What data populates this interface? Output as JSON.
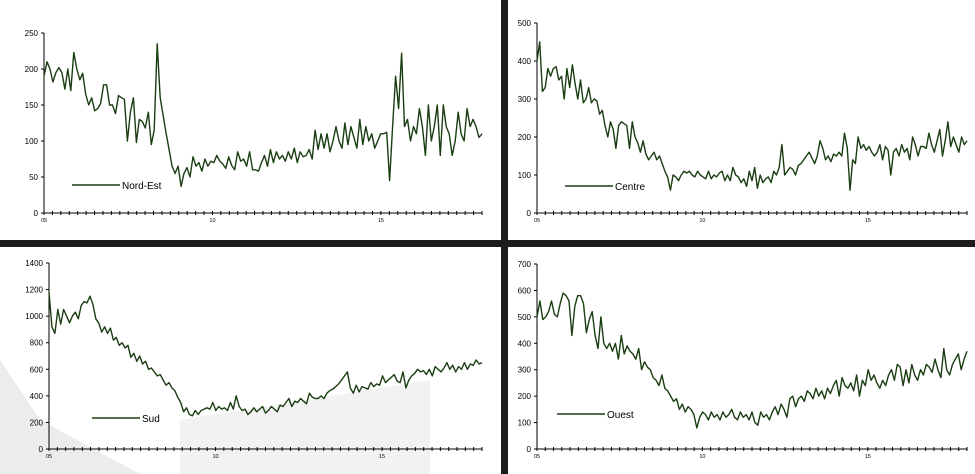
{
  "colors": {
    "series": "#1a3d12",
    "axis": "#000000",
    "divider": "#1c1c1c",
    "watermark": "#ececec"
  },
  "chart_data": [
    {
      "type": "line",
      "legend": {
        "label": "Nord-Est",
        "placement": "bottom-left"
      },
      "ylim": [
        0,
        250
      ],
      "yticks": [
        "0",
        "50",
        "100",
        "150",
        "200",
        "250"
      ],
      "xticks": [
        "05",
        "10",
        "15"
      ],
      "series": [
        {
          "name": "Nord-Est",
          "x_range": [
            2005,
            2018
          ],
          "values": [
            190,
            210,
            200,
            182,
            195,
            202,
            195,
            172,
            200,
            170,
            223,
            200,
            185,
            194,
            165,
            150,
            160,
            142,
            145,
            152,
            178,
            178,
            150,
            150,
            138,
            163,
            160,
            158,
            100,
            140,
            160,
            98,
            130,
            127,
            118,
            140,
            95,
            115,
            235,
            160,
            135,
            110,
            88,
            65,
            55,
            65,
            37,
            55,
            63,
            50,
            78,
            65,
            70,
            58,
            75,
            65,
            72,
            70,
            80,
            72,
            68,
            62,
            78,
            66,
            60,
            85,
            72,
            75,
            65,
            85,
            60,
            60,
            58,
            70,
            80,
            65,
            88,
            70,
            85,
            75,
            80,
            72,
            85,
            75,
            90,
            70,
            85,
            78,
            80,
            88,
            75,
            115,
            88,
            110,
            90,
            110,
            85,
            100,
            120,
            100,
            90,
            125,
            95,
            120,
            105,
            90,
            130,
            95,
            120,
            100,
            110,
            90,
            100,
            110,
            110,
            112,
            45,
            120,
            190,
            145,
            222,
            120,
            130,
            100,
            120,
            110,
            145,
            120,
            80,
            150,
            100,
            120,
            150,
            80,
            150,
            120,
            110,
            80,
            100,
            140,
            110,
            100,
            145,
            120,
            130,
            120,
            105,
            110
          ]
        }
      ]
    },
    {
      "type": "line",
      "legend": {
        "label": "Centre",
        "placement": "bottom-left"
      },
      "ylim": [
        0,
        500
      ],
      "yticks": [
        "0",
        "100",
        "200",
        "300",
        "400",
        "500"
      ],
      "xticks": [
        "05",
        "10",
        "15"
      ],
      "series": [
        {
          "name": "Centre",
          "x_range": [
            2005,
            2018
          ],
          "values": [
            400,
            450,
            320,
            330,
            380,
            360,
            380,
            385,
            350,
            360,
            300,
            380,
            330,
            390,
            340,
            300,
            350,
            290,
            300,
            330,
            290,
            300,
            295,
            260,
            270,
            230,
            200,
            240,
            220,
            170,
            230,
            240,
            235,
            230,
            170,
            240,
            200,
            185,
            160,
            190,
            155,
            140,
            150,
            160,
            140,
            150,
            130,
            110,
            95,
            60,
            100,
            95,
            85,
            100,
            110,
            105,
            110,
            100,
            95,
            110,
            100,
            95,
            90,
            110,
            90,
            100,
            95,
            105,
            110,
            85,
            100,
            85,
            120,
            100,
            95,
            80,
            90,
            70,
            110,
            85,
            120,
            65,
            100,
            80,
            90,
            95,
            80,
            110,
            100,
            120,
            180,
            100,
            110,
            120,
            115,
            100,
            125,
            130,
            140,
            150,
            160,
            145,
            130,
            150,
            190,
            170,
            140,
            150,
            135,
            155,
            150,
            160,
            150,
            210,
            170,
            60,
            140,
            130,
            200,
            170,
            180,
            165,
            175,
            160,
            150,
            160,
            180,
            140,
            175,
            165,
            100,
            160,
            170,
            150,
            180,
            160,
            170,
            140,
            200,
            180,
            150,
            175,
            175,
            170,
            210,
            180,
            160,
            190,
            220,
            150,
            190,
            240,
            175,
            200,
            180,
            160,
            200,
            180,
            190
          ]
        }
      ]
    },
    {
      "type": "line",
      "legend": {
        "label": "Sud",
        "placement": "bottom-left"
      },
      "ylim": [
        0,
        1400
      ],
      "yticks": [
        "0",
        "200",
        "400",
        "600",
        "800",
        "1000",
        "1200",
        "1400"
      ],
      "xticks": [
        "05",
        "10",
        "15"
      ],
      "series": [
        {
          "name": "Sud",
          "x_range": [
            2005,
            2018
          ],
          "values": [
            1180,
            920,
            870,
            1050,
            940,
            1050,
            1000,
            950,
            1000,
            1030,
            980,
            1080,
            1110,
            1100,
            1150,
            1090,
            980,
            950,
            880,
            920,
            870,
            910,
            820,
            840,
            780,
            800,
            760,
            780,
            690,
            720,
            660,
            700,
            640,
            660,
            600,
            610,
            580,
            550,
            560,
            520,
            480,
            500,
            460,
            440,
            390,
            350,
            280,
            310,
            260,
            250,
            290,
            260,
            290,
            300,
            310,
            300,
            350,
            290,
            320,
            300,
            310,
            290,
            350,
            300,
            400,
            320,
            290,
            300,
            260,
            280,
            310,
            280,
            300,
            320,
            270,
            290,
            320,
            300,
            280,
            330,
            320,
            350,
            380,
            320,
            360,
            350,
            380,
            360,
            340,
            420,
            390,
            380,
            380,
            400,
            380,
            420,
            440,
            450,
            470,
            490,
            520,
            550,
            580,
            460,
            420,
            480,
            430,
            470,
            460,
            450,
            500,
            470,
            490,
            480,
            550,
            500,
            520,
            540,
            560,
            510,
            500,
            580,
            460,
            520,
            550,
            570,
            600,
            580,
            590,
            560,
            600,
            550,
            620,
            600,
            580,
            610,
            650,
            600,
            630,
            580,
            620,
            600,
            650,
            600,
            640,
            630,
            670,
            640,
            650
          ]
        }
      ]
    },
    {
      "type": "line",
      "legend": {
        "label": "Ouest",
        "placement": "bottom-left"
      },
      "ylim": [
        0,
        700
      ],
      "yticks": [
        "0",
        "100",
        "200",
        "300",
        "400",
        "500",
        "600",
        "700"
      ],
      "xticks": [
        "05",
        "10",
        "15"
      ],
      "series": [
        {
          "name": "Ouest",
          "x_range": [
            2005,
            2018
          ],
          "values": [
            500,
            560,
            490,
            500,
            520,
            560,
            510,
            500,
            550,
            590,
            580,
            560,
            430,
            540,
            580,
            580,
            550,
            440,
            490,
            520,
            430,
            380,
            500,
            400,
            380,
            400,
            370,
            400,
            340,
            430,
            360,
            390,
            370,
            360,
            340,
            380,
            300,
            330,
            310,
            300,
            270,
            260,
            240,
            280,
            230,
            220,
            200,
            180,
            190,
            150,
            170,
            140,
            160,
            150,
            130,
            80,
            120,
            140,
            130,
            110,
            140,
            120,
            130,
            110,
            140,
            120,
            130,
            150,
            120,
            110,
            140,
            120,
            130,
            110,
            140,
            100,
            90,
            140,
            120,
            130,
            110,
            140,
            160,
            130,
            170,
            150,
            120,
            190,
            200,
            160,
            190,
            200,
            180,
            220,
            210,
            190,
            230,
            200,
            220,
            190,
            230,
            210,
            240,
            260,
            200,
            270,
            240,
            230,
            250,
            220,
            280,
            200,
            260,
            240,
            300,
            260,
            280,
            250,
            230,
            260,
            240,
            280,
            300,
            260,
            320,
            310,
            240,
            300,
            250,
            320,
            280,
            260,
            300,
            280,
            320,
            310,
            290,
            340,
            300,
            270,
            380,
            300,
            280,
            320,
            340,
            360,
            300,
            340,
            370
          ]
        }
      ]
    }
  ]
}
